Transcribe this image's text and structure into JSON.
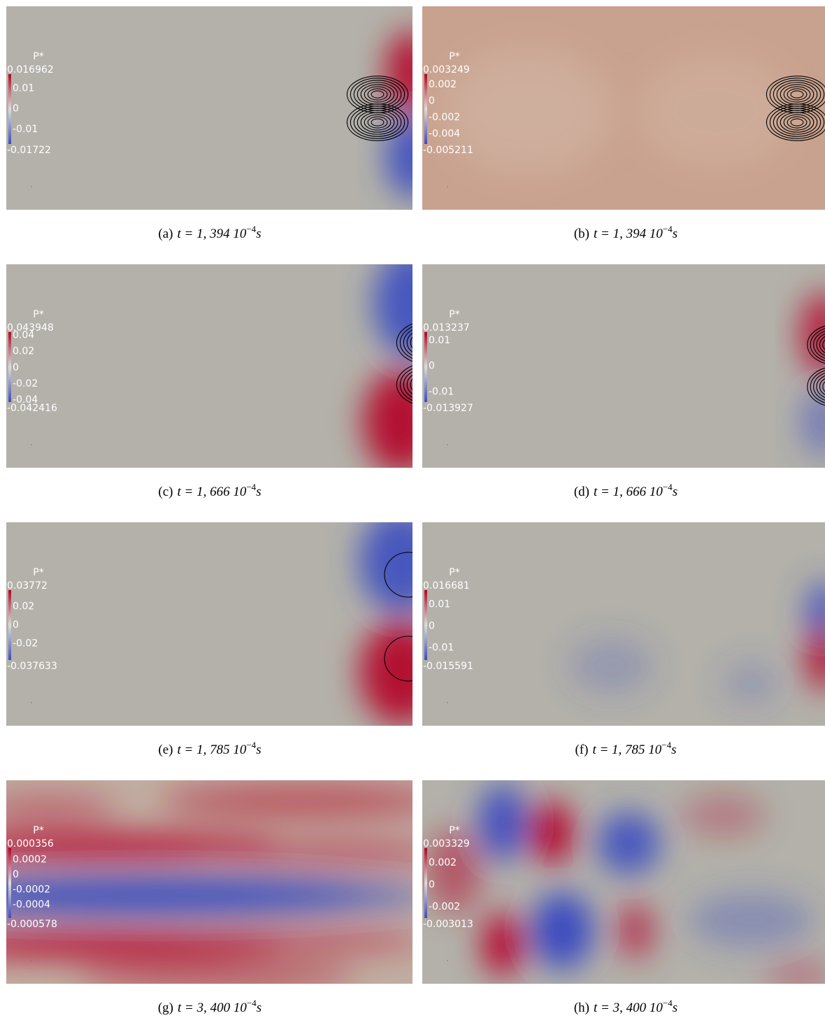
{
  "panels": [
    {
      "colorbar": {
        "title": "P*",
        "max": "0.016962",
        "ticks": [
          "0.01",
          "0",
          "-0.01"
        ],
        "min": "-0.01722"
      },
      "caption": {
        "label": "(a)",
        "time": "t = 1, 394 10",
        "exponent": "−4",
        "unit": "s"
      }
    },
    {
      "colorbar": {
        "title": "P*",
        "max": "0.003249",
        "ticks": [
          "0.002",
          "0",
          "-0.002",
          "-0.004"
        ],
        "min": "-0.005211"
      },
      "caption": {
        "label": "(b)",
        "time": "t = 1, 394 10",
        "exponent": "−4",
        "unit": "s"
      }
    },
    {
      "colorbar": {
        "title": "P*",
        "max": "0.043948",
        "ticks": [
          "0.04",
          "0.02",
          "0",
          "-0.02",
          "-0.04"
        ],
        "min": "-0.042416"
      },
      "caption": {
        "label": "(c)",
        "time": "t = 1, 666 10",
        "exponent": "−4",
        "unit": "s"
      }
    },
    {
      "colorbar": {
        "title": "P*",
        "max": "0.013237",
        "ticks": [
          "0.01",
          "0",
          "-0.01"
        ],
        "min": "-0.013927"
      },
      "caption": {
        "label": "(d)",
        "time": "t = 1, 666 10",
        "exponent": "−4",
        "unit": "s"
      }
    },
    {
      "colorbar": {
        "title": "P*",
        "max": "0.03772",
        "ticks": [
          "0.02",
          "0",
          "-0.02"
        ],
        "min": "-0.037633"
      },
      "caption": {
        "label": "(e)",
        "time": "t = 1, 785 10",
        "exponent": "−4",
        "unit": "s"
      }
    },
    {
      "colorbar": {
        "title": "P*",
        "max": "0.016681",
        "ticks": [
          "0.01",
          "0",
          "-0.01"
        ],
        "min": "-0.015591"
      },
      "caption": {
        "label": "(f)",
        "time": "t = 1, 785 10",
        "exponent": "−4",
        "unit": "s"
      }
    },
    {
      "colorbar": {
        "title": "P*",
        "max": "0.000356",
        "ticks": [
          "0.0002",
          "0",
          "-0.0002",
          "-0.0004"
        ],
        "min": "-0.000578"
      },
      "caption": {
        "label": "(g)",
        "time": "t = 3, 400 10",
        "exponent": "−4",
        "unit": "s"
      }
    },
    {
      "colorbar": {
        "title": "P*",
        "max": "0.003329",
        "ticks": [
          "0.002",
          "0",
          "-0.002"
        ],
        "min": "-0.003013"
      },
      "caption": {
        "label": "(h)",
        "time": "t = 3, 400 10",
        "exponent": "−4",
        "unit": "s"
      }
    }
  ]
}
